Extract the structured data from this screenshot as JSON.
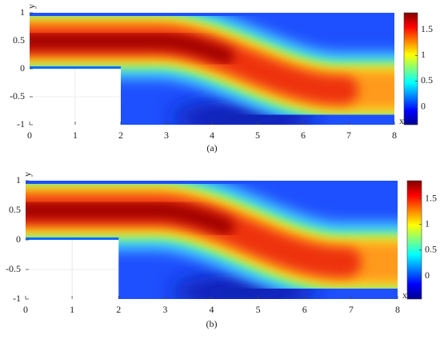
{
  "chart_data": [
    {
      "type": "heatmap",
      "caption": "(a)",
      "xlabel": "x",
      "ylabel": "y",
      "colormap": "jet",
      "xlim": [
        0,
        8
      ],
      "ylim": [
        -1,
        1
      ],
      "xticks": [
        0,
        1,
        2,
        3,
        4,
        5,
        6,
        7,
        8
      ],
      "yticks": [
        -1,
        -0.5,
        0,
        0.5,
        1
      ],
      "clim": [
        -0.35,
        1.83
      ],
      "cticks": [
        0,
        0.5,
        1,
        1.5
      ]
    },
    {
      "type": "heatmap",
      "caption": "(b)",
      "xlabel": "x",
      "ylabel": "y",
      "colormap": "jet",
      "xlim": [
        0,
        8
      ],
      "ylim": [
        -1,
        1
      ],
      "xticks": [
        0,
        1,
        2,
        3,
        4,
        5,
        6,
        7,
        8
      ],
      "yticks": [
        -1,
        -0.5,
        0,
        0.5,
        1
      ],
      "clim": [
        -0.45,
        1.85
      ],
      "cticks": [
        0,
        0.5,
        1,
        1.5
      ]
    }
  ]
}
